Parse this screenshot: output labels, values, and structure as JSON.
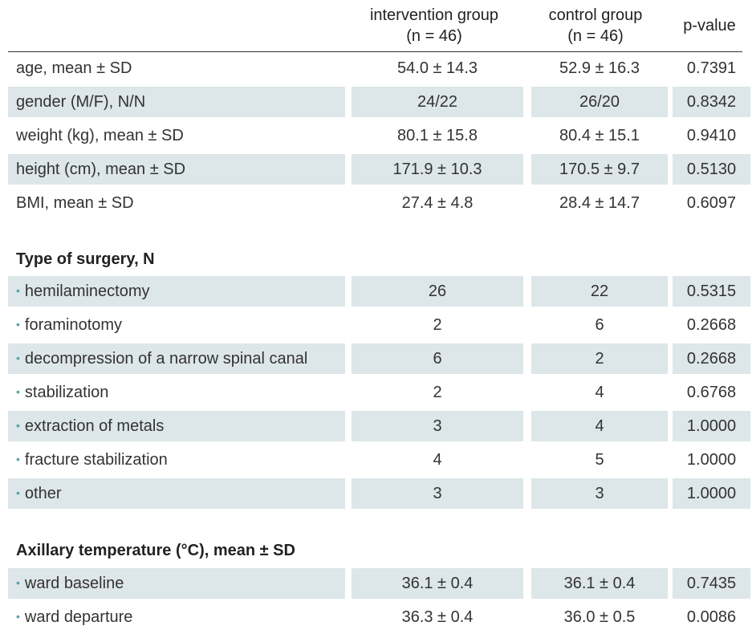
{
  "header": {
    "group1_line1": "intervention group",
    "group1_line2": "(n = 46)",
    "group2_line1": "control group",
    "group2_line2": "(n = 46)",
    "pvalue": "p-value"
  },
  "demographics": [
    {
      "label": "age, mean ± SD",
      "g1": "54.0 ± 14.3",
      "g2": "52.9 ± 16.3",
      "p": "0.7391"
    },
    {
      "label": "gender (M/F), N/N",
      "g1": "24/22",
      "g2": "26/20",
      "p": "0.8342"
    },
    {
      "label": "weight (kg), mean ± SD",
      "g1": "80.1 ± 15.8",
      "g2": "80.4 ± 15.1",
      "p": "0.9410"
    },
    {
      "label": "height (cm), mean ± SD",
      "g1": "171.9 ± 10.3",
      "g2": "170.5 ± 9.7",
      "p": "0.5130"
    },
    {
      "label": "BMI, mean ± SD",
      "g1": "27.4 ± 4.8",
      "g2": "28.4 ± 14.7",
      "p": "0.6097"
    }
  ],
  "surgery": {
    "title": "Type of surgery, N",
    "rows": [
      {
        "label": "hemilaminectomy",
        "g1": "26",
        "g2": "22",
        "p": "0.5315"
      },
      {
        "label": "foraminotomy",
        "g1": "2",
        "g2": "6",
        "p": "0.2668"
      },
      {
        "label": "decompression of a narrow spinal canal",
        "g1": "6",
        "g2": "2",
        "p": "0.2668"
      },
      {
        "label": "stabilization",
        "g1": "2",
        "g2": "4",
        "p": "0.6768"
      },
      {
        "label": "extraction of metals",
        "g1": "3",
        "g2": "4",
        "p": "1.0000"
      },
      {
        "label": "fracture stabilization",
        "g1": "4",
        "g2": "5",
        "p": "1.0000"
      },
      {
        "label": "other",
        "g1": "3",
        "g2": "3",
        "p": "1.0000"
      }
    ]
  },
  "temperature": {
    "title": "Axillary temperature (°C), mean ± SD",
    "rows": [
      {
        "label": "ward baseline",
        "g1": "36.1 ± 0.4",
        "g2": "36.1 ± 0.4",
        "p": "0.7435"
      },
      {
        "label": "ward departure",
        "g1": "36.3 ± 0.4",
        "g2": "36.0 ± 0.5",
        "p": "0.0086"
      }
    ]
  },
  "bullet": "•"
}
